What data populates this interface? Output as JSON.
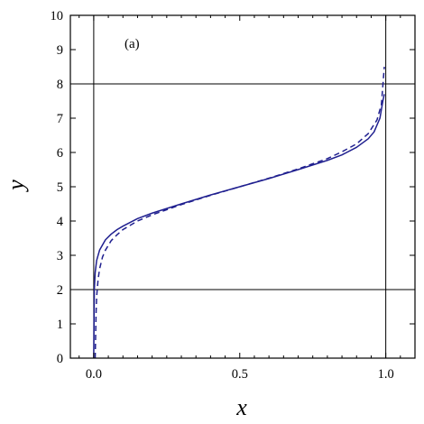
{
  "chart_data": {
    "type": "line",
    "panel_label": "(a)",
    "xlabel": "x",
    "ylabel": "y",
    "xlim": [
      -0.08,
      1.1
    ],
    "ylim": [
      0,
      10
    ],
    "x_ticks": [
      0.0,
      0.5,
      1.0
    ],
    "x_tick_labels": [
      "0.0",
      "0.5",
      "1.0"
    ],
    "y_ticks": [
      0,
      1,
      2,
      3,
      4,
      5,
      6,
      7,
      8,
      9,
      10
    ],
    "y_tick_labels": [
      "0",
      "1",
      "2",
      "3",
      "4",
      "5",
      "6",
      "7",
      "8",
      "9",
      "10"
    ],
    "reference_lines": {
      "vertical_x": [
        0,
        1
      ],
      "horizontal_y": [
        2,
        8
      ]
    },
    "grid": false,
    "legend": "none",
    "series": [
      {
        "style": "solid",
        "color": "#1f1f8f",
        "x": [
          0.0,
          0.002,
          0.005,
          0.01,
          0.02,
          0.04,
          0.06,
          0.08,
          0.1,
          0.15,
          0.2,
          0.3,
          0.4,
          0.5,
          0.6,
          0.7,
          0.8,
          0.85,
          0.9,
          0.94,
          0.96,
          0.98,
          0.99,
          0.995
        ],
        "y": [
          0.0,
          2.0,
          2.5,
          2.85,
          3.15,
          3.45,
          3.62,
          3.75,
          3.85,
          4.07,
          4.23,
          4.5,
          4.76,
          5.0,
          5.24,
          5.5,
          5.77,
          5.93,
          6.15,
          6.4,
          6.6,
          7.0,
          7.5,
          7.7
        ]
      },
      {
        "style": "dashed",
        "color": "#1f1f8f",
        "x": [
          0.005,
          0.008,
          0.01,
          0.015,
          0.02,
          0.03,
          0.04,
          0.06,
          0.08,
          0.1,
          0.15,
          0.2,
          0.3,
          0.4,
          0.5,
          0.6,
          0.7,
          0.8,
          0.85,
          0.9,
          0.94,
          0.97,
          0.985,
          0.995
        ],
        "y": [
          0.0,
          1.3,
          1.8,
          2.3,
          2.6,
          2.95,
          3.15,
          3.43,
          3.6,
          3.75,
          4.0,
          4.18,
          4.48,
          4.75,
          5.0,
          5.25,
          5.52,
          5.82,
          6.02,
          6.25,
          6.55,
          6.95,
          7.4,
          8.5
        ]
      }
    ]
  }
}
